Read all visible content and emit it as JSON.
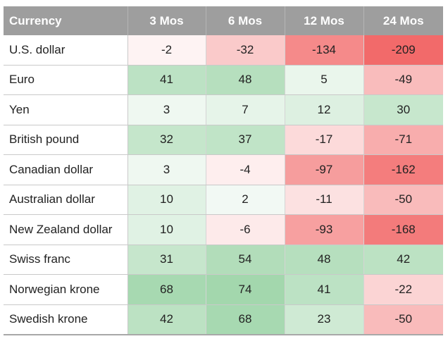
{
  "chart_data": {
    "type": "heatmap",
    "row_header": "Currency",
    "columns": [
      "3 Mos",
      "6 Mos",
      "12 Mos",
      "24 Mos"
    ],
    "rows": [
      {
        "name": "U.S. dollar",
        "values": [
          -2,
          -32,
          -134,
          -209
        ]
      },
      {
        "name": "Euro",
        "values": [
          41,
          48,
          5,
          -49
        ]
      },
      {
        "name": "Yen",
        "values": [
          3,
          7,
          12,
          30
        ]
      },
      {
        "name": "British pound",
        "values": [
          32,
          37,
          -17,
          -71
        ]
      },
      {
        "name": "Canadian dollar",
        "values": [
          3,
          -4,
          -97,
          -162
        ]
      },
      {
        "name": "Australian dollar",
        "values": [
          10,
          2,
          -11,
          -50
        ]
      },
      {
        "name": "New Zealand dollar",
        "values": [
          10,
          -6,
          -93,
          -168
        ]
      },
      {
        "name": "Swiss franc",
        "values": [
          31,
          54,
          48,
          42
        ]
      },
      {
        "name": "Norwegian krone",
        "values": [
          68,
          74,
          41,
          -22
        ]
      },
      {
        "name": "Swedish krone",
        "values": [
          42,
          68,
          23,
          -50
        ]
      }
    ],
    "colors": {
      "negative": "#f26a6a",
      "positive": "#5cb86e",
      "neutral": "#ffffff",
      "header_bg": "#9e9e9e"
    }
  }
}
